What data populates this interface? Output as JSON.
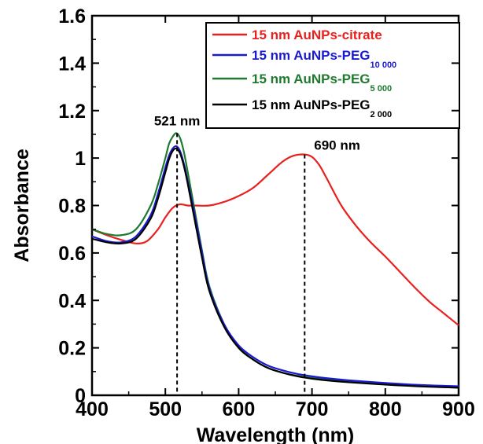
{
  "chart_data": {
    "type": "line",
    "xlabel": "Wavelength (nm)",
    "ylabel": "Absorbance",
    "xlim": [
      400,
      900
    ],
    "ylim": [
      0,
      1.6
    ],
    "x_ticks": [
      "400",
      "500",
      "600",
      "700",
      "800",
      "900"
    ],
    "y_ticks": [
      "0",
      "0.2",
      "0.4",
      "0.6",
      "0.8",
      "1",
      "1.2",
      "1.4",
      "1.6"
    ],
    "grid": false,
    "legend_position": "top-right",
    "series": [
      {
        "label_main": "15 nm AuNPs-citrate",
        "label_sub": "",
        "color": "#e8201e",
        "x": [
          400,
          420,
          440,
          460,
          475,
          490,
          500,
          510,
          520,
          530,
          540,
          560,
          580,
          600,
          620,
          640,
          660,
          675,
          690,
          700,
          710,
          720,
          740,
          760,
          780,
          800,
          820,
          840,
          860,
          880,
          900
        ],
        "y": [
          0.7,
          0.675,
          0.655,
          0.64,
          0.65,
          0.7,
          0.75,
          0.79,
          0.805,
          0.8,
          0.8,
          0.8,
          0.815,
          0.84,
          0.875,
          0.93,
          0.985,
          1.01,
          1.015,
          1.005,
          0.97,
          0.915,
          0.8,
          0.715,
          0.645,
          0.585,
          0.52,
          0.455,
          0.395,
          0.345,
          0.295
        ]
      },
      {
        "label_main": "15 nm AuNPs-PEG",
        "label_sub": "10 000",
        "color": "#1a1ad0",
        "x": [
          400,
          420,
          440,
          460,
          480,
          490,
          500,
          505,
          510,
          515,
          520,
          525,
          530,
          540,
          550,
          560,
          580,
          600,
          620,
          640,
          660,
          680,
          700,
          720,
          750,
          800,
          850,
          900
        ],
        "y": [
          0.67,
          0.65,
          0.645,
          0.67,
          0.76,
          0.85,
          0.96,
          1.01,
          1.04,
          1.05,
          1.03,
          0.98,
          0.91,
          0.76,
          0.6,
          0.45,
          0.3,
          0.21,
          0.16,
          0.125,
          0.105,
          0.09,
          0.08,
          0.072,
          0.063,
          0.052,
          0.043,
          0.038
        ]
      },
      {
        "label_main": "15 nm AuNPs-PEG",
        "label_sub": "5 000",
        "color": "#1e7a2e",
        "x": [
          400,
          420,
          440,
          460,
          480,
          490,
          500,
          505,
          510,
          515,
          520,
          525,
          530,
          540,
          550,
          560,
          580,
          600,
          620,
          640,
          660,
          680,
          700,
          720,
          750,
          800,
          850,
          900
        ],
        "y": [
          0.7,
          0.68,
          0.675,
          0.7,
          0.8,
          0.89,
          1.0,
          1.06,
          1.09,
          1.105,
          1.085,
          1.03,
          0.95,
          0.78,
          0.61,
          0.46,
          0.3,
          0.2,
          0.15,
          0.115,
          0.095,
          0.082,
          0.073,
          0.066,
          0.058,
          0.047,
          0.038,
          0.032
        ]
      },
      {
        "label_main": "15 nm AuNPs-PEG",
        "label_sub": "2 000",
        "color": "#000000",
        "x": [
          400,
          420,
          440,
          460,
          480,
          490,
          500,
          505,
          510,
          515,
          520,
          525,
          530,
          540,
          550,
          560,
          580,
          600,
          620,
          640,
          660,
          680,
          700,
          720,
          750,
          800,
          850,
          900
        ],
        "y": [
          0.66,
          0.645,
          0.64,
          0.66,
          0.745,
          0.83,
          0.94,
          0.995,
          1.03,
          1.04,
          1.02,
          0.97,
          0.9,
          0.74,
          0.58,
          0.44,
          0.29,
          0.2,
          0.15,
          0.115,
          0.095,
          0.08,
          0.07,
          0.063,
          0.055,
          0.045,
          0.037,
          0.032
        ]
      }
    ],
    "annotations": [
      {
        "text": "521 nm",
        "x": 516,
        "y_top": 1.105
      },
      {
        "text": "690 nm",
        "x": 690,
        "y_top": 1.015
      }
    ]
  }
}
